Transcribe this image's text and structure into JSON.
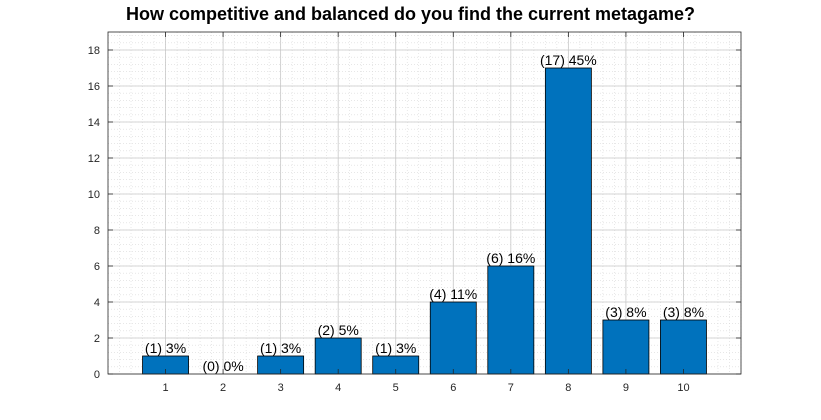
{
  "chart_data": {
    "type": "bar",
    "title": "How competitive and balanced do you find the current metagame?",
    "xlabel": "",
    "ylabel": "",
    "categories": [
      "1",
      "2",
      "3",
      "4",
      "5",
      "6",
      "7",
      "8",
      "9",
      "10"
    ],
    "values": [
      1,
      0,
      1,
      2,
      1,
      4,
      6,
      17,
      3,
      3
    ],
    "data_labels": [
      "(1) 3%",
      "(0) 0%",
      "(1) 3%",
      "(2) 5%",
      "(1) 3%",
      "(4) 11%",
      "(6) 16%",
      "(17) 45%",
      "(3) 8%",
      "(3) 8%"
    ],
    "xlim": [
      0,
      11
    ],
    "ylim": [
      0,
      19
    ],
    "yticks": [
      0,
      2,
      4,
      6,
      8,
      10,
      12,
      14,
      16,
      18
    ],
    "grid": true,
    "minor_grid": true,
    "colors": {
      "bar": "#0072BD",
      "bar_edge": "#000000",
      "grid": "#d9d9d9",
      "axis": "#262626"
    }
  }
}
